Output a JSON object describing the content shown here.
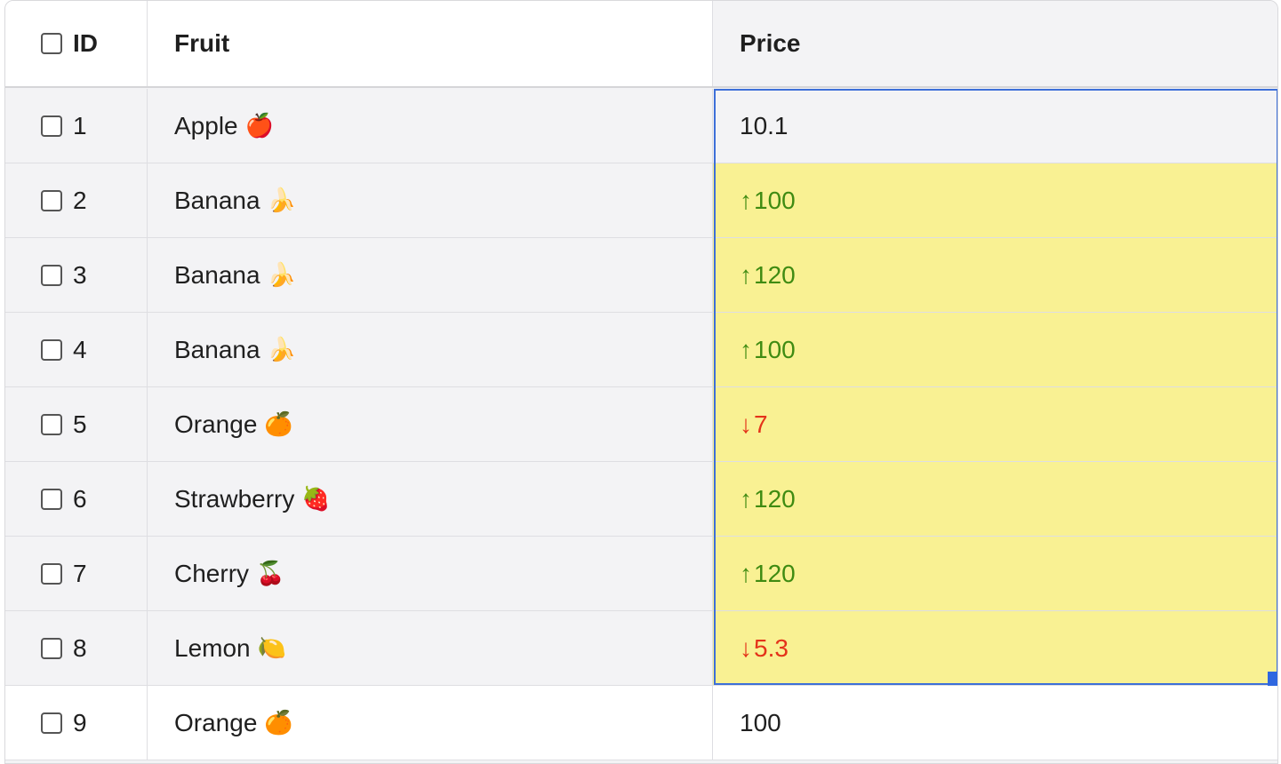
{
  "header": {
    "id_label": "ID",
    "fruit_label": "Fruit",
    "price_label": "Price"
  },
  "rows": [
    {
      "id": "1",
      "fruit": "Apple",
      "emoji": "🍎",
      "price": "10.1",
      "trend": "none"
    },
    {
      "id": "2",
      "fruit": "Banana",
      "emoji": "🍌",
      "price": "100",
      "trend": "up"
    },
    {
      "id": "3",
      "fruit": "Banana",
      "emoji": "🍌",
      "price": "120",
      "trend": "up"
    },
    {
      "id": "4",
      "fruit": "Banana",
      "emoji": "🍌",
      "price": "100",
      "trend": "up"
    },
    {
      "id": "5",
      "fruit": "Orange",
      "emoji": "🍊",
      "price": "7",
      "trend": "down"
    },
    {
      "id": "6",
      "fruit": "Strawberry",
      "emoji": "🍓",
      "price": "120",
      "trend": "up"
    },
    {
      "id": "7",
      "fruit": "Cherry",
      "emoji": "🍒",
      "price": "120",
      "trend": "up"
    },
    {
      "id": "8",
      "fruit": "Lemon",
      "emoji": "🍋",
      "price": "5.3",
      "trend": "down"
    },
    {
      "id": "9",
      "fruit": "Orange",
      "emoji": "🍊",
      "price": "100",
      "trend": "none"
    }
  ],
  "arrows": {
    "up": "↑",
    "down": "↓"
  },
  "colors": {
    "changed_cell": "#f9f193",
    "up": "#3f8b12",
    "down": "#e4331a",
    "selection": "#3d6fd8"
  }
}
